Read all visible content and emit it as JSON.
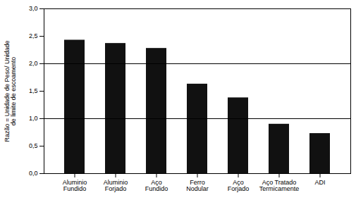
{
  "chart_data": {
    "type": "bar",
    "categories": [
      "Aluminio\nFundido",
      "Aluminio\nForjado",
      "Aço\nFundido",
      "Ferro\nNodular",
      "Aço\nForjado",
      "Aço Tratado\nTermicamente",
      "ADI"
    ],
    "values": [
      2.43,
      2.37,
      2.28,
      1.63,
      1.38,
      0.9,
      0.73
    ],
    "color": "#111111",
    "ylabel": "Razão = Unidade de Peso/ Unidade\nde limite de escoamento",
    "ylim": [
      0,
      3.0
    ],
    "yticks": [
      {
        "value": 0.0,
        "label": "0,0"
      },
      {
        "value": 0.5,
        "label": "0,5"
      },
      {
        "value": 1.0,
        "label": "1,0"
      },
      {
        "value": 1.5,
        "label": "1,5"
      },
      {
        "value": 2.0,
        "label": "2,0"
      },
      {
        "value": 2.5,
        "label": "2,5"
      },
      {
        "value": 3.0,
        "label": "3,0"
      }
    ],
    "hlines": [
      1.0,
      2.0
    ]
  }
}
